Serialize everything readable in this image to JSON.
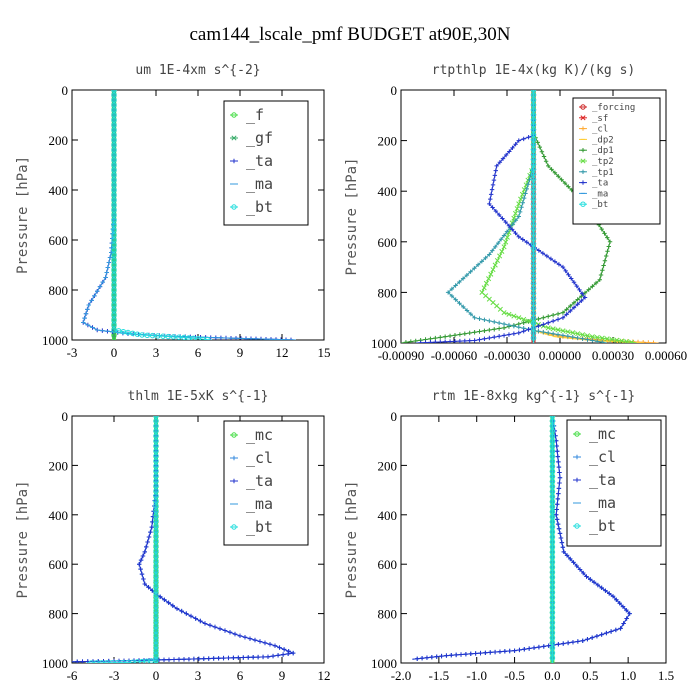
{
  "suptitle": "cam144_lscale_pmf  BUDGET at90E,30N",
  "colors": {
    "f": "#44dd44",
    "gf": "#33aa66",
    "ta": "#2233cc",
    "ma": "#3399dd",
    "bt": "#22dddd",
    "mc": "#44dd44",
    "cl": "#3388dd",
    "forcing": "#cc2222",
    "sf": "#dd2222",
    "cl_orange": "#ffaa33",
    "dp2": "#ffcc33",
    "dp1": "#339933",
    "tp2": "#66dd44",
    "tp1": "#3399aa"
  },
  "chart_data": [
    {
      "type": "line",
      "title": "um  1E-4xm s^{-2}",
      "ylabel": "Pressure [hPa]",
      "xlim": [
        -3,
        15
      ],
      "ylim": [
        1000,
        0
      ],
      "xticks": [
        "-3",
        "0",
        "3",
        "6",
        "9",
        "12",
        "15"
      ],
      "yticks": [
        "0",
        "200",
        "400",
        "600",
        "800",
        "1000"
      ],
      "legend": [
        "_f",
        "_gf",
        "_ta",
        "_ma",
        "_bt"
      ],
      "legend_position": "top-right",
      "series": [
        {
          "name": "_f",
          "key": "f",
          "marker": "o",
          "values": [
            [
              0,
              0
            ],
            [
              0,
              1000
            ]
          ]
        },
        {
          "name": "_gf",
          "key": "gf",
          "marker": "x",
          "values": [
            [
              0,
              0
            ],
            [
              0,
              1000
            ]
          ]
        },
        {
          "name": "_ta",
          "key": "ta",
          "marker": "+",
          "values": [
            [
              0,
              0
            ],
            [
              0,
              500
            ],
            [
              -0.2,
              650
            ],
            [
              -0.6,
              750
            ],
            [
              -1.8,
              860
            ],
            [
              -2.2,
              930
            ],
            [
              -1.2,
              960
            ],
            [
              1,
              975
            ],
            [
              4,
              985
            ],
            [
              8,
              992
            ],
            [
              13,
              1000
            ]
          ]
        },
        {
          "name": "_ma",
          "key": "ma",
          "marker": "-",
          "values": [
            [
              0,
              0
            ],
            [
              0,
              500
            ],
            [
              -0.2,
              650
            ],
            [
              -0.6,
              750
            ],
            [
              -1.8,
              860
            ],
            [
              -2.2,
              930
            ],
            [
              -1.2,
              960
            ],
            [
              1,
              975
            ],
            [
              4,
              985
            ],
            [
              8,
              992
            ],
            [
              13,
              1000
            ]
          ]
        },
        {
          "name": "_bt",
          "key": "bt",
          "marker": "o",
          "values": [
            [
              0,
              0
            ],
            [
              0,
              960
            ],
            [
              2,
              980
            ],
            [
              5,
              990
            ],
            [
              7,
              1000
            ]
          ]
        }
      ]
    },
    {
      "type": "line",
      "title": "rtpthlp  1E-4x(kg K)/(kg s)",
      "ylabel": "Pressure [hPa]",
      "xlim": [
        -0.0009,
        0.0009
      ],
      "ylim": [
        1000,
        0
      ],
      "xticks": [
        "-0.00090",
        "-0.00060",
        "-0.00030",
        "0.00000",
        "0.00030",
        "0.00060"
      ],
      "yticks": [
        "0",
        "200",
        "400",
        "600",
        "800",
        "1000"
      ],
      "legend": [
        "_forcing",
        "_sf",
        "_cl",
        "_dp2",
        "_dp1",
        "_tp2",
        "_tp1",
        "_ta",
        "_ma",
        "_bt"
      ],
      "legend_position": "top-right",
      "series": [
        {
          "name": "_forcing",
          "key": "forcing",
          "marker": "o",
          "values": [
            [
              0,
              0
            ],
            [
              0,
              1000
            ]
          ]
        },
        {
          "name": "_sf",
          "key": "sf",
          "marker": "x",
          "values": [
            [
              0,
              0
            ],
            [
              0,
              1000
            ]
          ]
        },
        {
          "name": "_cl",
          "key": "cl_orange",
          "marker": "+",
          "values": [
            [
              0,
              0
            ],
            [
              0,
              950
            ],
            [
              0.0002,
              975
            ],
            [
              0.0005,
              990
            ],
            [
              0.00085,
              1000
            ]
          ]
        },
        {
          "name": "_dp2",
          "key": "dp2",
          "marker": "-",
          "values": [
            [
              0,
              0
            ],
            [
              0,
              950
            ],
            [
              0.00015,
              975
            ],
            [
              0.0004,
              990
            ],
            [
              0.00075,
              1000
            ]
          ]
        },
        {
          "name": "_dp1",
          "key": "dp1",
          "marker": "+",
          "values": [
            [
              0,
              0
            ],
            [
              0,
              170
            ],
            [
              0.0001,
              300
            ],
            [
              0.00035,
              450
            ],
            [
              0.00052,
              600
            ],
            [
              0.00045,
              750
            ],
            [
              0.0002,
              880
            ],
            [
              -0.0002,
              940
            ],
            [
              -0.0006,
              975
            ],
            [
              -0.0009,
              1000
            ]
          ]
        },
        {
          "name": "_tp2",
          "key": "tp2",
          "marker": "x",
          "values": [
            [
              0,
              0
            ],
            [
              0,
              300
            ],
            [
              -0.0001,
              450
            ],
            [
              -0.0002,
              620
            ],
            [
              -0.00035,
              800
            ],
            [
              -0.0002,
              880
            ],
            [
              0.0001,
              940
            ],
            [
              0.0004,
              975
            ],
            [
              0.0007,
              1000
            ]
          ]
        },
        {
          "name": "_tp1",
          "key": "tp1",
          "marker": "+",
          "values": [
            [
              0,
              0
            ],
            [
              0,
              300
            ],
            [
              -0.0001,
              500
            ],
            [
              -0.0003,
              650
            ],
            [
              -0.00058,
              800
            ],
            [
              -0.0004,
              900
            ],
            [
              0,
              950
            ],
            [
              0.0003,
              980
            ],
            [
              0.0005,
              1000
            ]
          ]
        },
        {
          "name": "_ta",
          "key": "ta",
          "marker": "+",
          "values": [
            [
              0,
              0
            ],
            [
              0,
              180
            ],
            [
              -0.0001,
              200
            ],
            [
              -0.00025,
              300
            ],
            [
              -0.0003,
              450
            ],
            [
              -0.0001,
              580
            ],
            [
              0.0002,
              700
            ],
            [
              0.00035,
              820
            ],
            [
              0.0002,
              900
            ],
            [
              -0.0001,
              960
            ],
            [
              -0.0004,
              990
            ],
            [
              -0.0008,
              1000
            ]
          ]
        },
        {
          "name": "_ma",
          "key": "ma",
          "marker": "-",
          "values": [
            [
              0,
              0
            ],
            [
              0,
              1000
            ]
          ]
        },
        {
          "name": "_bt",
          "key": "bt",
          "marker": "o",
          "values": [
            [
              0,
              0
            ],
            [
              0,
              1000
            ]
          ]
        }
      ]
    },
    {
      "type": "line",
      "title": "thlm  1E-5xK s^{-1}",
      "ylabel": "Pressure [hPa]",
      "xlim": [
        -6,
        12
      ],
      "ylim": [
        1000,
        0
      ],
      "xticks": [
        "-6",
        "-3",
        "0",
        "3",
        "6",
        "9",
        "12"
      ],
      "yticks": [
        "0",
        "200",
        "400",
        "600",
        "800",
        "1000"
      ],
      "legend": [
        "_mc",
        "_cl",
        "_ta",
        "_ma",
        "_bt"
      ],
      "legend_position": "top-right",
      "series": [
        {
          "name": "_mc",
          "key": "mc",
          "marker": "o",
          "values": [
            [
              0,
              0
            ],
            [
              0,
              1000
            ]
          ]
        },
        {
          "name": "_cl",
          "key": "cl",
          "marker": "+",
          "values": [
            [
              0,
              0
            ],
            [
              0,
              300
            ],
            [
              -0.3,
              450
            ],
            [
              -0.8,
              550
            ],
            [
              -1.2,
              600
            ],
            [
              -0.8,
              680
            ],
            [
              0,
              720
            ],
            [
              1.5,
              780
            ],
            [
              3.5,
              840
            ],
            [
              6,
              890
            ],
            [
              8.5,
              930
            ],
            [
              9.8,
              960
            ],
            [
              8,
              975
            ],
            [
              2,
              985
            ],
            [
              -3,
              992
            ],
            [
              -6,
              995
            ]
          ]
        },
        {
          "name": "_ta",
          "key": "ta",
          "marker": "+",
          "values": [
            [
              0,
              0
            ],
            [
              0,
              300
            ],
            [
              -0.3,
              450
            ],
            [
              -0.8,
              550
            ],
            [
              -1.2,
              600
            ],
            [
              -0.8,
              680
            ],
            [
              0,
              720
            ],
            [
              1.5,
              780
            ],
            [
              3.5,
              840
            ],
            [
              6,
              890
            ],
            [
              8.5,
              930
            ],
            [
              9.8,
              960
            ],
            [
              8,
              975
            ],
            [
              2,
              985
            ],
            [
              -3,
              992
            ],
            [
              -6,
              995
            ]
          ]
        },
        {
          "name": "_ma",
          "key": "ma",
          "marker": "-",
          "values": [
            [
              0,
              0
            ],
            [
              0,
              1000
            ]
          ]
        },
        {
          "name": "_bt",
          "key": "bt",
          "marker": "o",
          "values": [
            [
              0,
              0
            ],
            [
              0,
              990
            ],
            [
              -2,
              998
            ],
            [
              -5,
              1000
            ]
          ]
        }
      ]
    },
    {
      "type": "line",
      "title": "rtm  1E-8xkg kg^{-1} s^{-1}",
      "ylabel": "Pressure [hPa]",
      "xlim": [
        -2.0,
        1.5
      ],
      "ylim": [
        1000,
        0
      ],
      "xticks": [
        "-2.0",
        "-1.5",
        "-1.0",
        "-0.5",
        "0.0",
        "0.5",
        "1.0",
        "1.5"
      ],
      "yticks": [
        "0",
        "200",
        "400",
        "600",
        "800",
        "1000"
      ],
      "legend": [
        "_mc",
        "_cl",
        "_ta",
        "_ma",
        "_bt"
      ],
      "legend_position": "top-right",
      "series": [
        {
          "name": "_mc",
          "key": "mc",
          "marker": "o",
          "values": [
            [
              0,
              0
            ],
            [
              0,
              1000
            ]
          ]
        },
        {
          "name": "_cl",
          "key": "cl",
          "marker": "+",
          "values": [
            [
              0,
              0
            ],
            [
              0.05,
              100
            ],
            [
              0.1,
              250
            ],
            [
              0.05,
              400
            ],
            [
              0.15,
              550
            ],
            [
              0.45,
              650
            ],
            [
              0.8,
              730
            ],
            [
              1.02,
              800
            ],
            [
              0.9,
              860
            ],
            [
              0.4,
              910
            ],
            [
              -0.5,
              950
            ],
            [
              -1.4,
              970
            ],
            [
              -1.85,
              985
            ]
          ]
        },
        {
          "name": "_ta",
          "key": "ta",
          "marker": "+",
          "values": [
            [
              0,
              0
            ],
            [
              0.05,
              100
            ],
            [
              0.1,
              250
            ],
            [
              0.05,
              400
            ],
            [
              0.15,
              550
            ],
            [
              0.45,
              650
            ],
            [
              0.8,
              730
            ],
            [
              1.02,
              800
            ],
            [
              0.9,
              860
            ],
            [
              0.4,
              910
            ],
            [
              -0.5,
              950
            ],
            [
              -1.4,
              970
            ],
            [
              -1.85,
              985
            ]
          ]
        },
        {
          "name": "_ma",
          "key": "ma",
          "marker": "-",
          "values": [
            [
              0,
              0
            ],
            [
              0,
              1000
            ]
          ]
        },
        {
          "name": "_bt",
          "key": "bt",
          "marker": "o",
          "values": [
            [
              0,
              0
            ],
            [
              0,
              1000
            ]
          ]
        }
      ]
    }
  ]
}
